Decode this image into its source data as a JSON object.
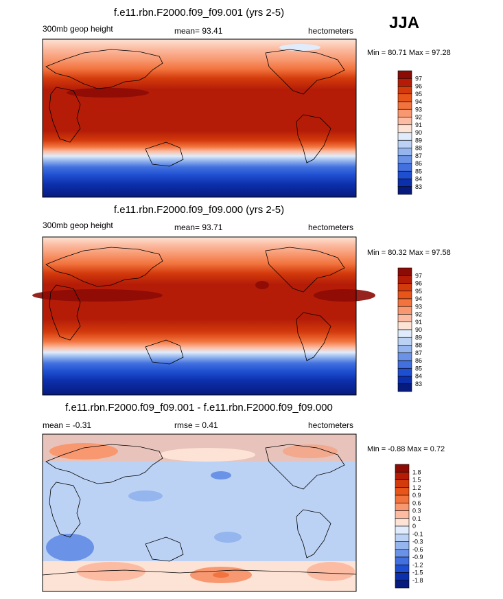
{
  "season": "JJA",
  "panels": [
    {
      "title": "f.e11.rbn.F2000.f09_f09.001 (yrs 2-5)",
      "left_label": "300mb geop height",
      "center_label": "mean=  93.41",
      "right_label": "hectometers",
      "minmax": "Min =  80.71 Max =  97.28",
      "colorbar": {
        "labels": [
          "97",
          "96",
          "95",
          "94",
          "93",
          "92",
          "91",
          "90",
          "89",
          "88",
          "87",
          "86",
          "85",
          "84",
          "83"
        ],
        "colors": [
          "#8c0b05",
          "#b41c08",
          "#d33a0c",
          "#e8551a",
          "#f2733d",
          "#f89870",
          "#fbbca3",
          "#fde3d5",
          "#e0ecfb",
          "#bcd2f5",
          "#94b5ee",
          "#6a92e6",
          "#4270df",
          "#1f4fd1",
          "#0c2fac",
          "#071b7e"
        ]
      }
    },
    {
      "title": "f.e11.rbn.F2000.f09_f09.000 (yrs 2-5)",
      "left_label": "300mb geop height",
      "center_label": "mean=  93.71",
      "right_label": "hectometers",
      "minmax": "Min =  80.32 Max =  97.58",
      "colorbar": {
        "labels": [
          "97",
          "96",
          "95",
          "94",
          "93",
          "92",
          "91",
          "90",
          "89",
          "88",
          "87",
          "86",
          "85",
          "84",
          "83"
        ],
        "colors": [
          "#8c0b05",
          "#b41c08",
          "#d33a0c",
          "#e8551a",
          "#f2733d",
          "#f89870",
          "#fbbca3",
          "#fde3d5",
          "#e0ecfb",
          "#bcd2f5",
          "#94b5ee",
          "#6a92e6",
          "#4270df",
          "#1f4fd1",
          "#0c2fac",
          "#071b7e"
        ]
      }
    },
    {
      "title": "f.e11.rbn.F2000.f09_f09.001 - f.e11.rbn.F2000.f09_f09.000",
      "left_label": "mean =  -0.31",
      "center_label": "rmse =   0.41",
      "right_label": "hectometers",
      "minmax": "Min =  -0.88 Max =   0.72",
      "colorbar": {
        "labels": [
          "1.8",
          "1.5",
          "1.2",
          "0.9",
          "0.6",
          "0.3",
          "0.1",
          "0",
          "-0.1",
          "-0.3",
          "-0.6",
          "-0.9",
          "-1.2",
          "-1.5",
          "-1.8"
        ],
        "colors": [
          "#8c0b05",
          "#b41c08",
          "#d33a0c",
          "#e8551a",
          "#f2733d",
          "#f89870",
          "#fbbca3",
          "#fde3d5",
          "#e0ecfb",
          "#bcd2f5",
          "#94b5ee",
          "#6a92e6",
          "#4270df",
          "#1f4fd1",
          "#0c2fac",
          "#071b7e"
        ]
      }
    }
  ]
}
